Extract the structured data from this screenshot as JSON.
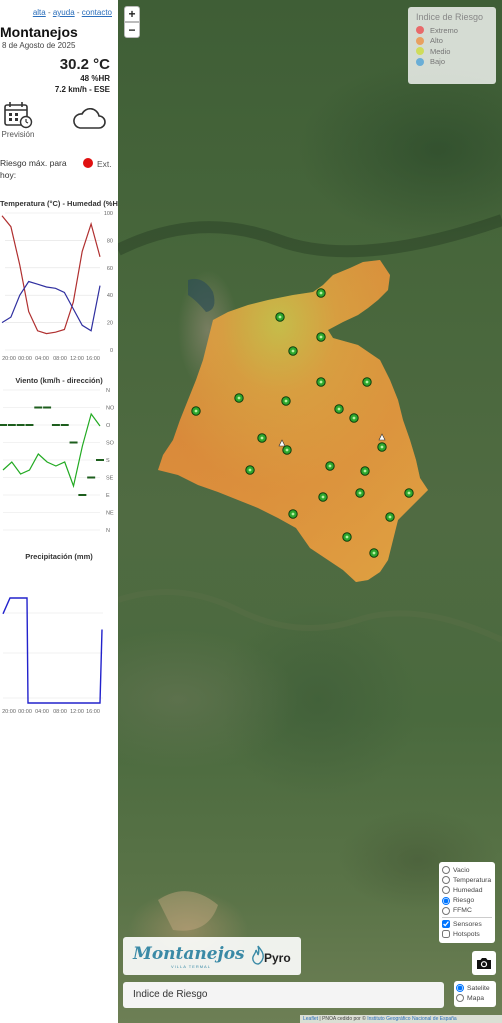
{
  "header": {
    "links": [
      "alta",
      "ayuda",
      "contacto"
    ],
    "separator": " - ",
    "place": "Montanejos",
    "date": "8 de Agosto de 2025"
  },
  "current": {
    "temperature": "30.2 °C",
    "humidity": "48 %HR",
    "wind": "7.2 km/h - ESE"
  },
  "forecast": {
    "label": "Previsión",
    "icon": "calendar-icon",
    "weather_icon": "cloud-icon"
  },
  "risk": {
    "label": "Riesgo máx. para hoy:",
    "value": "Ext.",
    "color": "#e01010"
  },
  "charts": {
    "temp_title": "Temperatura (°C) - Humedad (%HR)",
    "wind_title": "Viento (km/h - dirección)",
    "precip_title": "Precipitación (mm)",
    "time_ticks": [
      "20:00",
      "00:00",
      "04:00",
      "08:00",
      "12:00",
      "16:00"
    ],
    "humidity_ticks": [
      "100",
      "80",
      "60",
      "40",
      "20",
      "0"
    ],
    "direction_ticks": [
      "N",
      "NO",
      "O",
      "SO",
      "S",
      "SE",
      "E",
      "NE",
      "N"
    ]
  },
  "chart_data": [
    {
      "type": "line",
      "title": "Temperatura (°C) - Humedad (%HR)",
      "x": [
        "19:00",
        "21:00",
        "23:00",
        "01:00",
        "03:00",
        "05:00",
        "07:00",
        "09:00",
        "11:00",
        "13:00",
        "15:00",
        "17:00"
      ],
      "series": [
        {
          "values": [
            98,
            90,
            62,
            28,
            14,
            12,
            13,
            15,
            35,
            72,
            92,
            68
          ],
          "color": "#b03030"
        },
        {
          "values": [
            20,
            24,
            40,
            50,
            48,
            46,
            45,
            42,
            30,
            18,
            14,
            47
          ],
          "color": "#3030a0"
        }
      ],
      "ylim": [
        0,
        100
      ]
    },
    {
      "type": "line",
      "title": "Viento (km/h - dirección)",
      "x": [
        "19:00",
        "21:00",
        "23:00",
        "01:00",
        "03:00",
        "05:00",
        "07:00",
        "09:00",
        "11:00",
        "13:00",
        "15:00",
        "17:00"
      ],
      "series": [
        {
          "values": [
            3,
            4,
            2.5,
            3,
            5,
            4,
            3.5,
            4,
            1,
            6,
            10,
            8.5
          ],
          "color": "#22aa22"
        }
      ],
      "direction_marks": [
        "O",
        "O",
        "O",
        "O",
        "NO",
        "NO",
        "O",
        "O",
        "SO",
        "E",
        "SE",
        "S"
      ]
    },
    {
      "type": "line",
      "title": "Precipitación (mm)",
      "x": [
        "19:00",
        "20:00",
        "22:00",
        "23:00",
        "00:00",
        "17:00",
        "17:30"
      ],
      "series": [
        {
          "values": [
            0.85,
            1.0,
            1.0,
            1.0,
            0,
            0,
            0.7
          ],
          "color": "#2222cc"
        }
      ]
    }
  ],
  "map": {
    "zoom_in": "+",
    "zoom_out": "−",
    "legend": {
      "title": "Indice de Riesgo",
      "items": [
        {
          "label": "Extremo",
          "color": "#e86a6a"
        },
        {
          "label": "Alto",
          "color": "#e8a060"
        },
        {
          "label": "Medio",
          "color": "#cfdc5a"
        },
        {
          "label": "Bajo",
          "color": "#6aaed6"
        }
      ]
    },
    "layers": [
      "Vacio",
      "Temperatura",
      "Humedad",
      "Riesgo",
      "FFMC"
    ],
    "selected_layer": "Riesgo",
    "overlays": [
      "Sensores",
      "Hotspots"
    ],
    "overlays_checked": [
      true,
      false
    ],
    "basemaps": [
      "Satelite",
      "Mapa"
    ],
    "selected_basemap": "Satelite",
    "panel_title": "Indice de Riesgo",
    "logo": "Montanejos",
    "logo_sub": "VILLA TERMAL",
    "partner": "Pyro",
    "attribution": {
      "leaflet": "Leaflet",
      "text": " | PNOA cedido por © ",
      "ign": "Instituto Geográfico Nacional de España"
    }
  }
}
